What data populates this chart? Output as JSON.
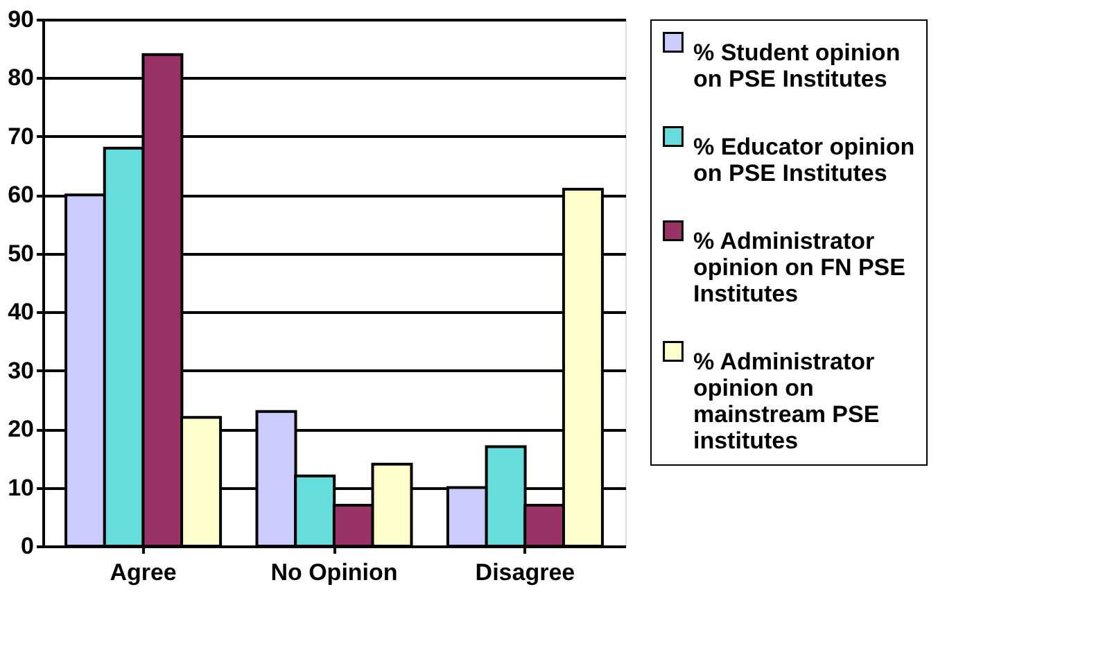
{
  "chart_data": {
    "type": "bar",
    "categories": [
      "Agree",
      "No Opinion",
      "Disagree"
    ],
    "series": [
      {
        "name": "% Student opinion on PSE Institutes",
        "color": "#ccccff",
        "values": [
          60,
          23,
          10
        ]
      },
      {
        "name": "% Educator opinion on PSE Institutes",
        "color": "#66dddd",
        "values": [
          68,
          12,
          17
        ]
      },
      {
        "name": "% Administrator opinion on FN PSE Institutes",
        "color": "#993366",
        "values": [
          84,
          7,
          7
        ]
      },
      {
        "name": "% Administrator opinion on mainstream PSE institutes",
        "color": "#ffffcc",
        "values": [
          22,
          14,
          61
        ]
      }
    ],
    "ylim": [
      0,
      90
    ],
    "yticks": [
      0,
      10,
      20,
      30,
      40,
      50,
      60,
      70,
      80,
      90
    ],
    "grid": "y",
    "legend": "right"
  }
}
